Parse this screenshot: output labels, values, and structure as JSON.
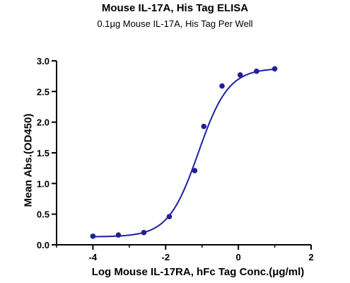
{
  "chart_data": {
    "type": "line",
    "title": "Mouse IL-17A, His Tag ELISA",
    "subtitle": "0.1μg Mouse IL-17A, His Tag Per Well",
    "xlabel": "Log Mouse IL-17RA, hFc Tag Conc.(μg/ml)",
    "ylabel": "Mean Abs.(OD450)",
    "xlim": [
      -5,
      2
    ],
    "ylim": [
      0,
      3.0
    ],
    "x_ticks": [
      -4,
      -2,
      0,
      2
    ],
    "x_tick_labels": [
      "-4",
      "-2",
      "0",
      "2"
    ],
    "y_ticks": [
      0,
      0.5,
      1.0,
      1.5,
      2.0,
      2.5,
      3.0
    ],
    "y_tick_labels": [
      "0.0",
      "0.5",
      "1.0",
      "1.5",
      "2.0",
      "2.5",
      "3.0"
    ],
    "grid": false,
    "series": [
      {
        "x": [
          -4.0,
          -3.3,
          -2.6,
          -1.9,
          -1.2,
          -0.95,
          -0.45,
          0.05,
          0.5,
          1.0
        ],
        "y": [
          0.14,
          0.16,
          0.2,
          0.46,
          1.21,
          1.93,
          2.59,
          2.77,
          2.83,
          2.87
        ],
        "color": "#1f1f9e",
        "fit_curve": {
          "bottom": 0.13,
          "top": 2.88,
          "logEC50": -1.1,
          "hill": 1.05
        }
      }
    ]
  }
}
